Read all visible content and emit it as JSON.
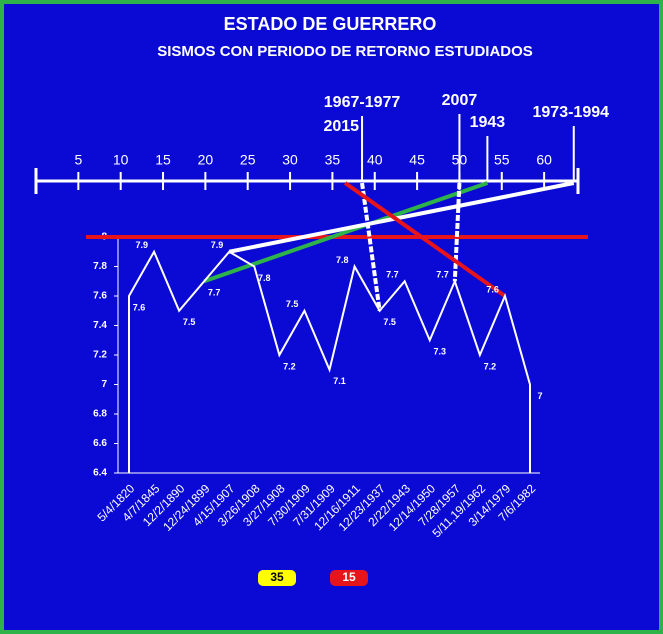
{
  "chart_data": {
    "type": "line",
    "title": "ESTADO DE GUERRERO",
    "subtitle": "SISMOS CON PERIODO DE RETORNO ESTUDIADOS",
    "categories": [
      "5/4/1820",
      "4/7/1845",
      "12/2/1890",
      "12/24/1899",
      "4/15/1907",
      "3/26/1908",
      "3/27/1908",
      "7/30/1909",
      "7/31/1909",
      "12/16/1911",
      "12/23/1937",
      "2/22/1943",
      "12/14/1950",
      "7/28/1957",
      "5/11,19/1962",
      "3/14/1979",
      "7/6/1982"
    ],
    "values": [
      7.6,
      7.9,
      7.5,
      7.7,
      7.9,
      7.8,
      7.2,
      7.5,
      7.1,
      7.8,
      7.5,
      7.7,
      7.3,
      7.7,
      7.2,
      7.6,
      7
    ],
    "color": "#ffffff",
    "ylim": [
      6.4,
      8
    ],
    "yticks": [
      6.4,
      6.6,
      6.8,
      7,
      7.2,
      7.4,
      7.6,
      7.8,
      8
    ],
    "hline": {
      "value": 8,
      "color": "#e8141c"
    },
    "timeline": {
      "xlim": [
        0,
        64
      ],
      "xticks": [
        5,
        10,
        15,
        20,
        25,
        30,
        35,
        40,
        45,
        50,
        55,
        60
      ],
      "markers": [
        {
          "labels": [
            "1967-1977",
            "2015"
          ],
          "value": 38.5
        },
        {
          "labels": [
            "2007"
          ],
          "value": 50
        },
        {
          "labels": [
            "1943"
          ],
          "value": 53.3
        },
        {
          "labels": [
            "1973-1994"
          ],
          "value": 63.5
        }
      ]
    },
    "connectors": [
      {
        "from": 53.3,
        "to": 3,
        "color": "#2eb34a"
      },
      {
        "from": 63.5,
        "to": 4,
        "color": "#ffffff"
      },
      {
        "from": 38.5,
        "to": 10,
        "color": "#ffffff"
      },
      {
        "from": 50,
        "to": 13,
        "color": "#ffffff"
      },
      {
        "from": 36.5,
        "to": 15,
        "color": "#e8141c"
      }
    ],
    "badges": [
      {
        "label": "35",
        "color": "#ffff00"
      },
      {
        "label": "15",
        "color": "#e8141c"
      }
    ]
  }
}
